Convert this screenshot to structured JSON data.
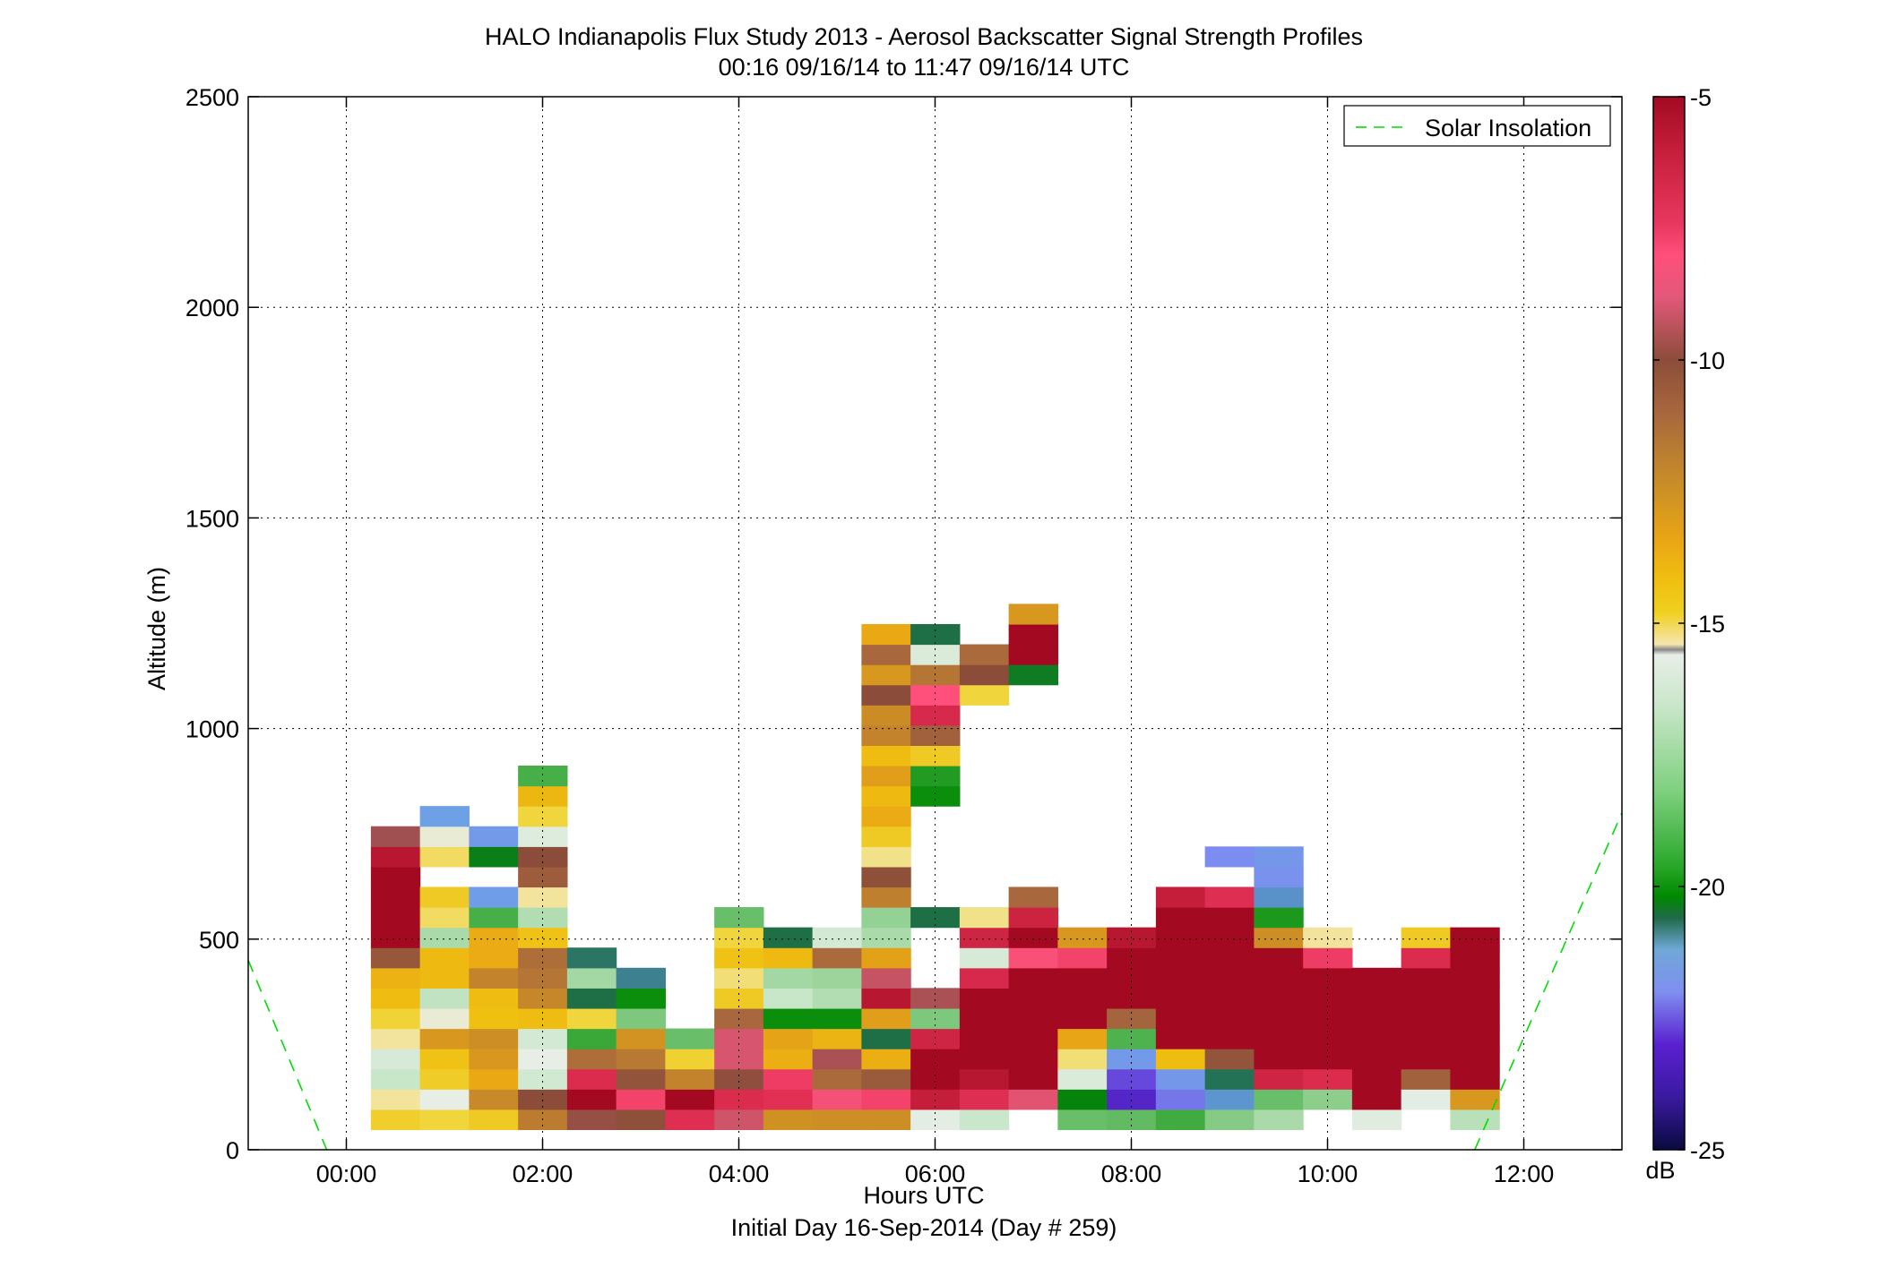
{
  "chart_data": {
    "type": "heatmap",
    "title": "HALO Indianapolis Flux Study 2013 - Aerosol Backscatter Signal Strength Profiles",
    "subtitle": "00:16 09/16/14 to 11:47 09/16/14  UTC",
    "xlabel": "Hours UTC",
    "xlabel2": "Initial Day 16-Sep-2014 (Day # 259)",
    "ylabel": "Altitude (m)",
    "xlim": [
      -1.0,
      13.0
    ],
    "ylim": [
      0,
      2500
    ],
    "x_ticks": [
      0,
      2,
      4,
      6,
      8,
      10,
      12
    ],
    "x_tick_labels": [
      "00:00",
      "02:00",
      "04:00",
      "06:00",
      "08:00",
      "10:00",
      "12:00"
    ],
    "y_ticks": [
      0,
      500,
      1000,
      1500,
      2000,
      2500
    ],
    "y_tick_labels": [
      "0",
      "500",
      "1000",
      "1500",
      "2000",
      "2500"
    ],
    "grid": true,
    "legend": {
      "position": "top-right",
      "entries": [
        "Solar Insolation"
      ]
    },
    "colorbar": {
      "label": "dB",
      "range": [
        -25,
        -5
      ],
      "ticks": [
        -5,
        -10,
        -15,
        -20,
        -25
      ],
      "tick_labels": [
        "-5",
        "-10",
        "-15",
        "-20",
        "-25"
      ]
    },
    "time_bin_hours": 0.5,
    "altitude_bin_m": 48,
    "altitude_bin_start_m": 48,
    "columns": [
      {
        "t": 0.5,
        "v": [
          -13.7,
          -14.5,
          -16.2,
          -15.7,
          -14.5,
          -13.9,
          -13.0,
          -12.6,
          -9.5,
          -5.0,
          -5.0,
          -5.0,
          -5.0,
          -5.5,
          -8.4
        ]
      },
      {
        "t": 1.0,
        "v": [
          -14.0,
          -15.2,
          -13.6,
          -13.2,
          -11.6,
          -15.0,
          -16.3,
          -12.9,
          -12.9,
          -16.6,
          -14.2,
          -13.5,
          null,
          -14.2,
          -15.0,
          -21.3
        ]
      },
      {
        "t": 1.5,
        "v": [
          -13.5,
          -11.0,
          -12.3,
          -11.6,
          -11.2,
          -13.1,
          -13.0,
          -10.8,
          -12.4,
          -12.4,
          -18.0,
          -21.4,
          null,
          -19.4,
          -21.5
        ]
      },
      {
        "t": 2.0,
        "v": [
          -10.6,
          -9.2,
          -15.9,
          -15.2,
          -15.8,
          -13.0,
          -10.9,
          -10.4,
          -10.2,
          -13.2,
          -16.5,
          -14.5,
          -9.7,
          -9.2,
          -15.5,
          -14.0,
          -12.8,
          -18.0
        ]
      },
      {
        "t": 2.5,
        "v": [
          -8.8,
          -5.0,
          -6.4,
          -10.2,
          -18.2,
          -14.0,
          -19.8,
          -16.7,
          -20.0
        ]
      },
      {
        "t": 3.0,
        "v": [
          -9.3,
          -6.9,
          -9.4,
          -10.5,
          -11.4,
          -17.2,
          -19.0,
          -20.3
        ]
      },
      {
        "t": 3.5,
        "v": [
          -6.5,
          -5.0,
          -10.8,
          -13.8,
          -17.5
        ]
      },
      {
        "t": 4.0,
        "v": [
          -7.9,
          -6.4,
          -9.0,
          -7.8,
          -7.8,
          -10.0,
          -13.5,
          -14.3,
          -13.2,
          -14.0,
          -17.5
        ]
      },
      {
        "t": 4.5,
        "v": [
          -11.3,
          -6.6,
          -6.8,
          -12.5,
          -12.1,
          -19.0,
          -16.2,
          -16.7,
          -12.9,
          -19.8
        ]
      },
      {
        "t": 5.0,
        "v": [
          -11.2,
          -7.3,
          -10.1,
          -8.3,
          -12.7,
          -19.0,
          -16.5,
          -16.8,
          -10.1,
          -15.8
        ]
      },
      {
        "t": 5.5,
        "v": [
          -11.2,
          -6.9,
          -9.6,
          -12.5,
          -19.8,
          -11.9,
          -5.5,
          -8.0,
          -12.0,
          -16.6,
          -16.9,
          -10.7,
          -9.3,
          -14.4,
          -13.5,
          -12.4,
          -12.9,
          -11.9,
          -13.0,
          -10.8,
          -11.1,
          -9.2,
          -11.6,
          -10.0,
          -12.3
        ]
      },
      {
        "t": 6.0,
        "v": [
          -15.3,
          -5.8,
          -5.0,
          -5.0,
          -6.1,
          -17.2,
          -8.3,
          null,
          null,
          null,
          -19.8,
          null,
          null,
          null,
          null,
          null,
          -19.0,
          -18.6,
          -13.5,
          -9.8,
          -6.3,
          -7.1,
          -10.4,
          -15.6,
          -19.8
        ]
      },
      {
        "t": 6.5,
        "v": [
          -16.1,
          -6.5,
          -5.5,
          -5.0,
          -5.0,
          -5.0,
          -5.0,
          -6.3,
          -15.7,
          -6.1,
          -14.4,
          null,
          null,
          null,
          null,
          null,
          null,
          null,
          null,
          null,
          null,
          -14.0,
          -9.2,
          -10.1
        ]
      },
      {
        "t": 7.0,
        "v": [
          null,
          -7.6,
          -5.0,
          -5.0,
          -5.0,
          -5.0,
          -5.0,
          -5.0,
          -7.2,
          -5.0,
          -6.0,
          -10.0,
          null,
          null,
          null,
          null,
          null,
          null,
          null,
          null,
          null,
          null,
          -19.5,
          -5.0,
          -5.0,
          -11.6
        ]
      },
      {
        "t": 7.5,
        "v": [
          -17.5,
          -19.3,
          -15.6,
          -14.3,
          -12.2,
          -5.0,
          -5.0,
          -5.0,
          -6.9,
          -11.6
        ]
      },
      {
        "t": 8.0,
        "v": [
          -17.6,
          -23.1,
          -22.6,
          -21.5,
          -17.9,
          -9.9,
          -5.0,
          -5.0,
          -5.0,
          -5.5
        ]
      },
      {
        "t": 8.5,
        "v": [
          -18.1,
          -22.2,
          -21.6,
          -13.0,
          -5.0,
          -5.0,
          -5.0,
          -5.0,
          -5.0,
          -5.0,
          -5.0,
          -5.8
        ]
      },
      {
        "t": 9.0,
        "v": [
          -17.1,
          -20.9,
          -19.9,
          -9.4,
          -5.0,
          -5.0,
          -5.0,
          -5.0,
          -5.0,
          -5.0,
          -5.0,
          -6.5,
          null,
          -22.0
        ]
      },
      {
        "t": 9.5,
        "v": [
          -16.6,
          -17.5,
          -6.1,
          -5.0,
          -5.0,
          -5.0,
          -5.0,
          -5.0,
          -5.0,
          -11.2,
          -18.7,
          -20.8,
          -21.8,
          -21.6
        ]
      },
      {
        "t": 10.0,
        "v": [
          null,
          -17.0,
          -6.4,
          -5.0,
          -5.0,
          -5.0,
          -5.0,
          -5.0,
          -6.8,
          -14.5
        ]
      },
      {
        "t": 10.5,
        "v": [
          -15.4,
          -5.0,
          -5.0,
          -5.0,
          -5.0,
          -5.0,
          -5.0,
          -5.0
        ]
      },
      {
        "t": 11.0,
        "v": [
          null,
          -15.3,
          -9.8,
          -5.0,
          -5.0,
          -5.0,
          -5.0,
          -5.0,
          -6.4,
          -13.5
        ]
      },
      {
        "t": 11.5,
        "v": [
          -16.4,
          -11.6,
          -5.0,
          -5.0,
          -5.0,
          -5.0,
          -5.0,
          -5.0,
          -5.0,
          -5.0
        ]
      }
    ],
    "solar_insolation": {
      "name": "Solar Insolation",
      "style": "dashed",
      "color": "#00dd00",
      "points": [
        [
          -1.0,
          450
        ],
        [
          -0.2,
          0
        ],
        [
          11.5,
          0
        ],
        [
          13.0,
          800
        ]
      ]
    }
  }
}
